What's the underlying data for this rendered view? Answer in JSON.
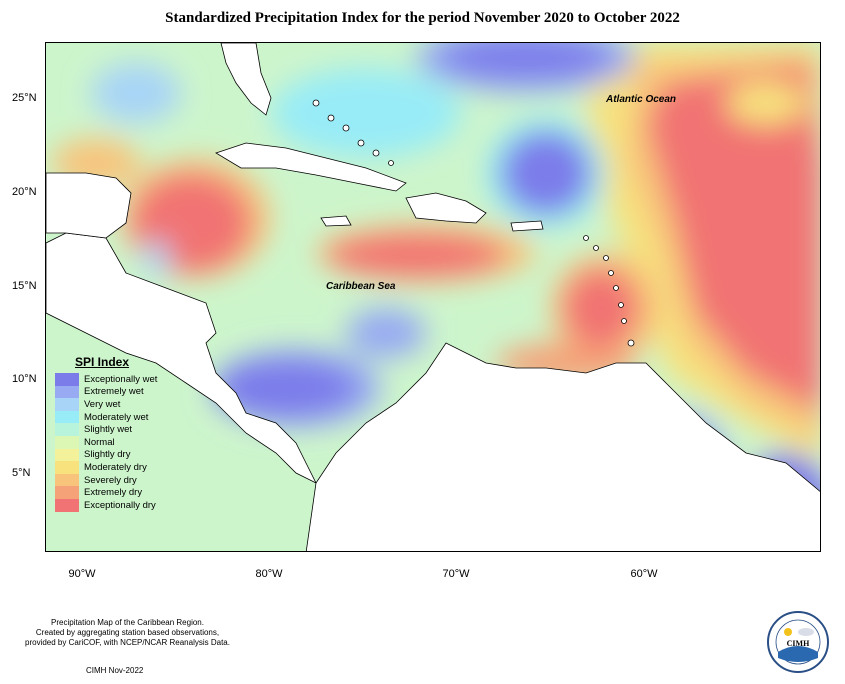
{
  "title": "Standardized Precipitation Index for the period November 2020 to October 2022",
  "axes": {
    "lat_labels": [
      {
        "text": "25°N",
        "value": 25
      },
      {
        "text": "20°N",
        "value": 20
      },
      {
        "text": "15°N",
        "value": 15
      },
      {
        "text": "10°N",
        "value": 10
      },
      {
        "text": "5°N",
        "value": 5
      }
    ],
    "lon_labels": [
      {
        "text": "90°W",
        "value": -90
      },
      {
        "text": "80°W",
        "value": -80
      },
      {
        "text": "70°W",
        "value": -70
      },
      {
        "text": "60°W",
        "value": -60
      }
    ],
    "lon_range": [
      -92,
      -50
    ],
    "lat_range": [
      1,
      28
    ]
  },
  "places": {
    "atlantic": "Atlantic Ocean",
    "caribbean": "Caribbean Sea"
  },
  "legend": {
    "title": "SPI Index",
    "items": [
      {
        "label": "Exceptionally wet",
        "color": "#7b7bea"
      },
      {
        "label": "Extremely wet",
        "color": "#97aaf2"
      },
      {
        "label": "Very wet",
        "color": "#a8d4f7"
      },
      {
        "label": "Moderately wet",
        "color": "#98ecf7"
      },
      {
        "label": "Slightly wet",
        "color": "#b8f3dc"
      },
      {
        "label": "Normal",
        "color": "#dcf7b4"
      },
      {
        "label": "Slightly dry",
        "color": "#f3f29a"
      },
      {
        "label": "Moderately dry",
        "color": "#f7e27e"
      },
      {
        "label": "Severely dry",
        "color": "#f8c47c"
      },
      {
        "label": "Extremely dry",
        "color": "#f5a278"
      },
      {
        "label": "Exceptionally dry",
        "color": "#f17373"
      }
    ]
  },
  "footer": {
    "line1": "Precipitation Map of the Caribbean Region.",
    "line2": "Created by aggregating station based observations,",
    "line3": "provided by CariCOF, with NCEP/NCAR Reanalysis Data.",
    "credit": "CIMH Nov-2022"
  },
  "logo": {
    "text": "CIMH"
  }
}
